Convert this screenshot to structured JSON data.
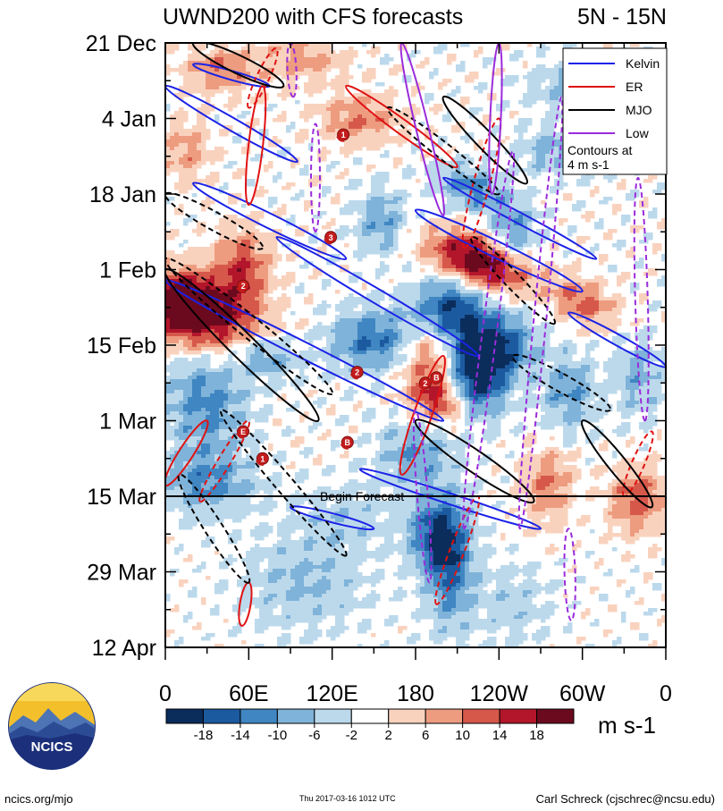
{
  "chart_data": {
    "type": "heatmap",
    "title": "UWND200 with CFS forecasts",
    "region": "5N - 15N",
    "y_axis_labels": [
      "21 Dec",
      "4 Jan",
      "18 Jan",
      "1 Feb",
      "15 Feb",
      "1 Mar",
      "15 Mar",
      "29 Mar",
      "12 Apr"
    ],
    "x_axis_labels": [
      "0",
      "60E",
      "120E",
      "180",
      "120W",
      "60W",
      "0"
    ],
    "x_range_deg_east": [
      0,
      360
    ],
    "y_range_days_since_21Dec": [
      0,
      112
    ],
    "colorbar": {
      "ticks": [
        "-18",
        "-14",
        "-10",
        "-6",
        "-2",
        "2",
        "6",
        "10",
        "14",
        "18"
      ],
      "unit": "m s-1",
      "colors": [
        "#0b2d5c",
        "#1c5aa0",
        "#3f86c2",
        "#7fb3d9",
        "#bcd9ec",
        "#ffffff",
        "#f9d2be",
        "#ee9c80",
        "#d6584b",
        "#b3162b",
        "#6b0a1e"
      ]
    },
    "legend": [
      {
        "name": "Kelvin",
        "color": "#1a22e6"
      },
      {
        "name": "ER",
        "color": "#e01212"
      },
      {
        "name": "MJO",
        "color": "#000000"
      },
      {
        "name": "Low",
        "color": "#9a2bdb"
      }
    ],
    "legend_note": "Contours at\n4 m s-1",
    "forecast_marker": {
      "label": "Begin Forecast",
      "day": 84
    },
    "markers": [
      {
        "label": "1",
        "lon": 128,
        "day": 17
      },
      {
        "label": "3",
        "lon": 119,
        "day": 36
      },
      {
        "label": "2",
        "lon": 56,
        "day": 45
      },
      {
        "label": "2",
        "lon": 138,
        "day": 61
      },
      {
        "label": "2",
        "lon": 187,
        "day": 63
      },
      {
        "label": "B",
        "lon": 195,
        "day": 62
      },
      {
        "label": "E",
        "lon": 56,
        "day": 72
      },
      {
        "label": "1",
        "lon": 70,
        "day": 77
      },
      {
        "label": "B",
        "lon": 131,
        "day": 74
      }
    ]
  },
  "footer": {
    "left": "ncics.org/mjo",
    "center": "Thu 2017-03-16 1012 UTC",
    "right": "Carl Schreck (cjschrec@ncsu.edu)",
    "logo_text": "NCICS"
  }
}
